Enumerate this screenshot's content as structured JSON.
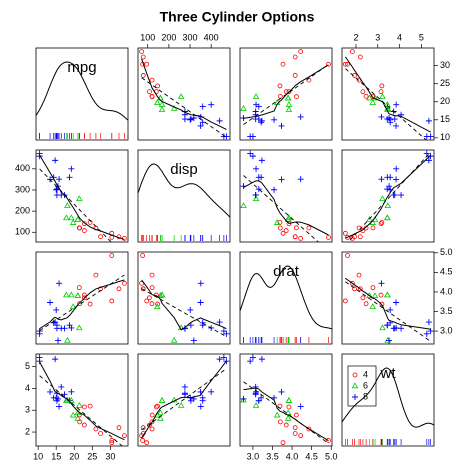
{
  "chart_data": {
    "type": "scatter_matrix",
    "title": "Three Cylinder Options",
    "variables": [
      {
        "name": "mpg",
        "lim": [
          9.4,
          34.9
        ],
        "ticks": [
          10,
          15,
          20,
          25,
          30
        ],
        "values": [
          21.0,
          21.0,
          22.8,
          21.4,
          18.7,
          18.1,
          14.3,
          24.4,
          22.8,
          19.2,
          17.8,
          16.4,
          17.3,
          15.2,
          10.4,
          10.4,
          14.7,
          32.4,
          30.4,
          33.9,
          21.5,
          15.5,
          15.2,
          13.3,
          19.2,
          27.3,
          26.0,
          30.4,
          15.8,
          19.7,
          15.0,
          21.4
        ]
      },
      {
        "name": "disp",
        "lim": [
          54.0,
          489.0
        ],
        "ticks": [
          100,
          200,
          300,
          400
        ],
        "values": [
          160,
          160,
          108,
          258,
          360,
          225,
          360,
          146.7,
          140.8,
          167.6,
          167.6,
          275.8,
          275.8,
          275.8,
          472,
          460,
          440,
          78.7,
          75.7,
          71.1,
          120.1,
          318,
          304,
          350,
          400,
          79,
          120.3,
          95.1,
          351,
          145,
          301,
          121
        ]
      },
      {
        "name": "drat",
        "lim": [
          2.67,
          5.02
        ],
        "ticks": [
          {
            "value": 3,
            "label": "3.0"
          },
          3.5,
          {
            "value": 4,
            "label": "4.0"
          },
          4.5,
          {
            "value": 5,
            "label": "5.0"
          }
        ],
        "values": [
          3.9,
          3.9,
          3.85,
          3.08,
          3.15,
          2.76,
          3.21,
          3.69,
          3.92,
          3.92,
          3.92,
          3.07,
          3.07,
          3.07,
          2.93,
          3.0,
          3.23,
          4.08,
          4.93,
          4.22,
          3.7,
          2.76,
          3.15,
          3.73,
          3.08,
          4.08,
          4.43,
          3.77,
          4.22,
          3.62,
          3.54,
          4.11
        ]
      },
      {
        "name": "wt",
        "lim": [
          1.36,
          5.58
        ],
        "ticks": [
          2,
          3,
          4,
          5
        ],
        "values": [
          2.62,
          2.875,
          2.32,
          3.215,
          3.44,
          3.46,
          3.57,
          3.19,
          3.15,
          3.44,
          3.44,
          4.07,
          3.73,
          3.78,
          5.25,
          5.424,
          5.345,
          2.2,
          1.615,
          1.835,
          2.465,
          3.52,
          3.435,
          3.84,
          3.845,
          1.935,
          2.14,
          1.513,
          3.17,
          2.77,
          3.57,
          2.78
        ]
      }
    ],
    "group": [
      6,
      6,
      4,
      6,
      8,
      6,
      8,
      4,
      4,
      6,
      6,
      8,
      8,
      8,
      8,
      8,
      8,
      4,
      4,
      4,
      4,
      8,
      8,
      8,
      8,
      4,
      4,
      4,
      8,
      6,
      8,
      4
    ],
    "levels": [
      {
        "name": "4",
        "value": 4,
        "color": "#ff0000",
        "symbol": "circle"
      },
      {
        "name": "6",
        "value": 6,
        "color": "#00cd00",
        "symbol": "triangle"
      },
      {
        "name": "8",
        "value": 8,
        "color": "#0000ff",
        "symbol": "plus"
      }
    ]
  }
}
